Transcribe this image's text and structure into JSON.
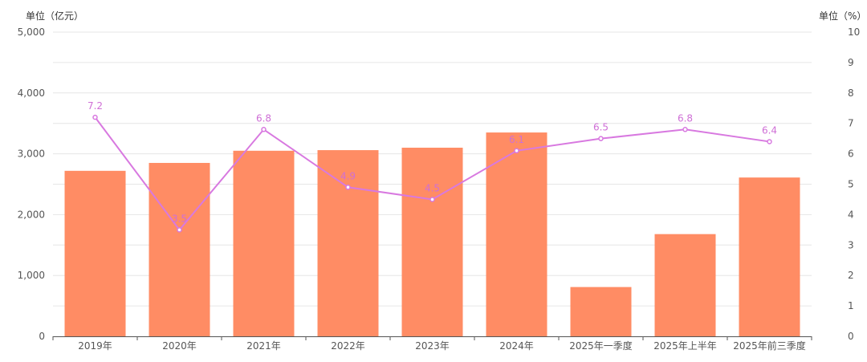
{
  "units": {
    "left": "单位（亿元）",
    "right": "单位（%）"
  },
  "chart_data": {
    "type": "bar",
    "categories": [
      "2019年",
      "2020年",
      "2021年",
      "2022年",
      "2023年",
      "2024年",
      "2025年一季度",
      "2025年上半年",
      "2025年前三季度"
    ],
    "series": [
      {
        "type": "bar",
        "axis": "left",
        "color": "#ff8c64",
        "values": [
          2720,
          2850,
          3050,
          3060,
          3100,
          3350,
          810,
          1680,
          2610
        ]
      },
      {
        "type": "line",
        "axis": "right",
        "color": "#d879e0",
        "values": [
          7.2,
          3.5,
          6.8,
          4.9,
          4.5,
          6.1,
          6.5,
          6.8,
          6.4
        ]
      }
    ],
    "y_left": {
      "min": 0,
      "max": 5000,
      "ticks": [
        "0",
        "1,000",
        "2,000",
        "3,000",
        "4,000",
        "5,000"
      ]
    },
    "y_right": {
      "min": 0,
      "max": 10,
      "ticks": [
        "0",
        "1",
        "2",
        "3",
        "4",
        "5",
        "6",
        "7",
        "8",
        "9",
        "10"
      ]
    },
    "grid": true
  }
}
